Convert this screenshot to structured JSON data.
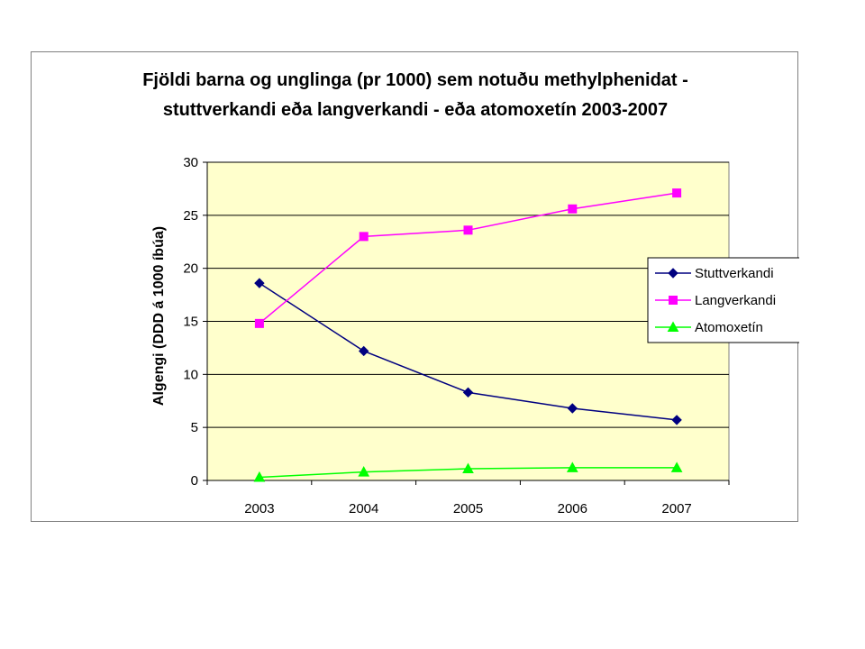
{
  "chart_data": {
    "type": "line",
    "title_lines": [
      "Fjöldi barna og unglinga (pr 1000) sem notuðu  methylphenidat -",
      "stuttverkandi eða langverkandi -  eða atomoxetín  2003-2007"
    ],
    "xlabel": "",
    "ylabel": "Algengi (DDD á 1000 íbúa)",
    "categories": [
      "2003",
      "2004",
      "2005",
      "2006",
      "2007"
    ],
    "ylim": [
      0,
      30
    ],
    "yticks": [
      "0",
      "5",
      "10",
      "15",
      "20",
      "25",
      "30"
    ],
    "grid": true,
    "legend_position": "right",
    "plot_background": "#FFFFCC",
    "series": [
      {
        "name": "Stuttverkandi",
        "color": "#000080",
        "marker": "diamond",
        "values": [
          18.6,
          12.2,
          8.3,
          6.8,
          5.7
        ]
      },
      {
        "name": "Langverkandi",
        "color": "#FF00FF",
        "marker": "square",
        "values": [
          14.8,
          23.0,
          23.6,
          25.6,
          27.1
        ]
      },
      {
        "name": "Atomoxetín",
        "color": "#00FF00",
        "marker": "triangle",
        "values": [
          0.3,
          0.8,
          1.1,
          1.2,
          1.2
        ]
      }
    ]
  }
}
